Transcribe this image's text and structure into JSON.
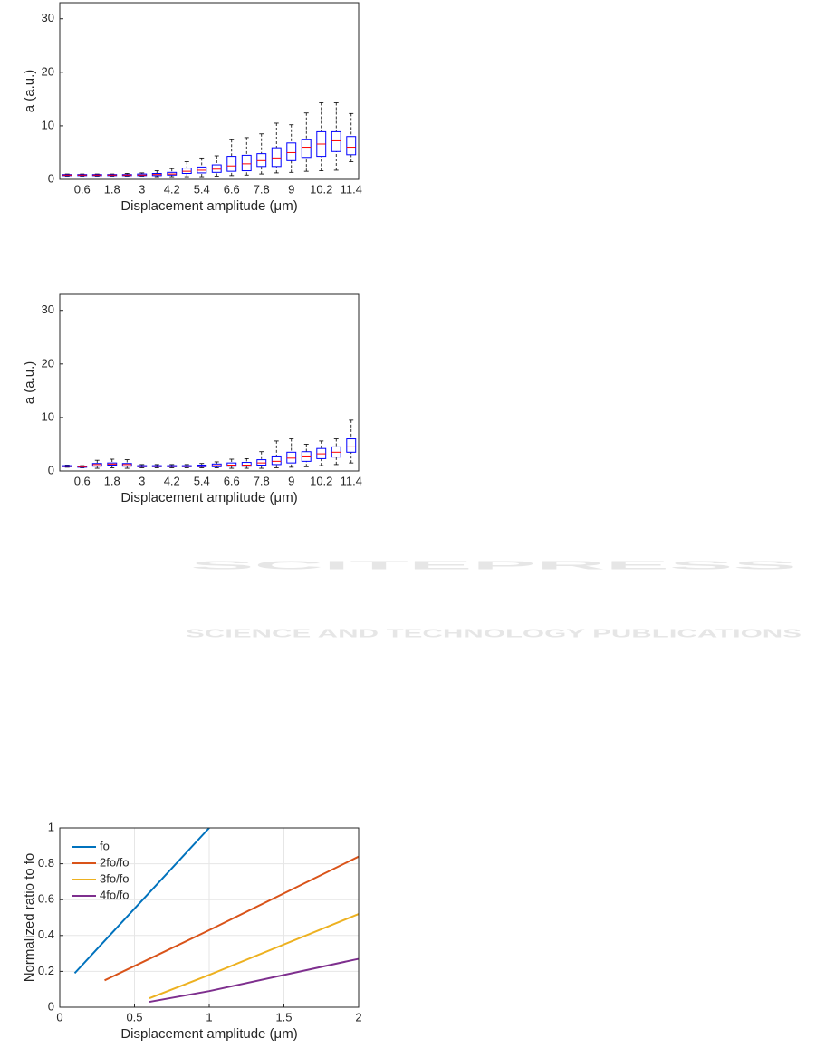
{
  "chart_data": [
    {
      "type": "box",
      "ylabel": "a (a.u.)",
      "xlabel": "Displacement amplitude (μm)",
      "categories": [
        null,
        "0.6",
        null,
        "1.8",
        null,
        "3",
        null,
        "4.2",
        null,
        "5.4",
        null,
        "6.6",
        null,
        "7.8",
        null,
        "9",
        null,
        "10.2",
        null,
        "11.4"
      ],
      "boxes": [
        [
          0.6,
          0.7,
          0.8,
          0.9,
          1.0
        ],
        [
          0.6,
          0.7,
          0.8,
          0.9,
          1.0
        ],
        [
          0.6,
          0.7,
          0.8,
          0.9,
          1.0
        ],
        [
          0.6,
          0.7,
          0.8,
          0.9,
          1.0
        ],
        [
          0.6,
          0.7,
          0.8,
          0.9,
          1.1
        ],
        [
          0.6,
          0.7,
          0.8,
          1.0,
          1.2
        ],
        [
          0.5,
          0.7,
          0.9,
          1.1,
          1.6
        ],
        [
          0.5,
          0.8,
          1.0,
          1.3,
          2.0
        ],
        [
          0.5,
          1.1,
          1.5,
          2.1,
          3.3
        ],
        [
          0.5,
          1.2,
          1.7,
          2.3,
          4.0
        ],
        [
          0.6,
          1.3,
          1.9,
          2.7,
          4.4
        ],
        [
          0.7,
          1.5,
          2.5,
          4.3,
          7.4
        ],
        [
          0.8,
          1.6,
          2.9,
          4.5,
          7.8
        ],
        [
          1.0,
          2.4,
          3.5,
          4.8,
          8.5
        ],
        [
          1.2,
          2.4,
          4.0,
          5.9,
          10.5
        ],
        [
          1.3,
          3.5,
          5.0,
          6.8,
          10.2
        ],
        [
          1.5,
          4.1,
          6.0,
          7.4,
          12.4
        ],
        [
          1.6,
          4.3,
          6.6,
          8.9,
          14.3
        ],
        [
          1.7,
          5.2,
          7.2,
          8.9,
          14.3
        ],
        [
          3.3,
          4.6,
          6.0,
          8.0,
          12.3
        ]
      ],
      "box_color": "#0000ff",
      "median_color": "#ff0000",
      "ylim": [
        0,
        33
      ],
      "yticks": [
        0,
        10,
        20,
        30
      ]
    },
    {
      "type": "box",
      "ylabel": "a (a.u.)",
      "xlabel": "Displacement amplitude (μm)",
      "categories": [
        null,
        "0.6",
        null,
        "1.8",
        null,
        "3",
        null,
        "4.2",
        null,
        "5.4",
        null,
        "6.6",
        null,
        "7.8",
        null,
        "9",
        null,
        "10.2",
        null,
        "11.4"
      ],
      "boxes": [
        [
          0.7,
          0.8,
          0.9,
          1.0,
          1.1
        ],
        [
          0.6,
          0.7,
          0.8,
          0.9,
          1.0
        ],
        [
          0.5,
          0.9,
          1.2,
          1.4,
          2.0
        ],
        [
          0.6,
          1.1,
          1.3,
          1.5,
          2.2
        ],
        [
          0.5,
          0.9,
          1.2,
          1.4,
          2.1
        ],
        [
          0.6,
          0.8,
          0.9,
          1.0,
          1.2
        ],
        [
          0.6,
          0.8,
          0.9,
          1.0,
          1.2
        ],
        [
          0.6,
          0.8,
          0.9,
          1.0,
          1.2
        ],
        [
          0.6,
          0.8,
          0.9,
          1.0,
          1.2
        ],
        [
          0.6,
          0.8,
          0.9,
          1.1,
          1.4
        ],
        [
          0.6,
          0.8,
          1.0,
          1.3,
          1.7
        ],
        [
          0.5,
          0.9,
          1.1,
          1.5,
          2.2
        ],
        [
          0.5,
          0.9,
          1.1,
          1.6,
          2.3
        ],
        [
          0.5,
          1.1,
          1.5,
          2.1,
          3.6
        ],
        [
          0.6,
          1.2,
          1.8,
          2.8,
          5.6
        ],
        [
          0.7,
          1.5,
          2.4,
          3.5,
          6.0
        ],
        [
          0.8,
          1.8,
          2.8,
          3.6,
          5.0
        ],
        [
          1.0,
          2.3,
          3.2,
          4.2,
          5.6
        ],
        [
          1.2,
          2.6,
          3.5,
          4.5,
          6.0
        ],
        [
          1.5,
          3.5,
          4.5,
          6.0,
          9.5
        ]
      ],
      "box_color": "#0000ff",
      "median_color": "#ff0000",
      "ylim": [
        0,
        33
      ],
      "yticks": [
        0,
        10,
        20,
        30
      ]
    },
    {
      "type": "line",
      "ylabel": "Normalized ratio to fo",
      "xlabel": "Displacement amplitude (μm)",
      "x": [
        0.1,
        0.3,
        0.6,
        1,
        2
      ],
      "series": [
        {
          "name": "fo",
          "color": "#0072bd",
          "values": [
            0.19,
            0.37,
            0.64,
            1.0,
            null
          ]
        },
        {
          "name": "2fo/fo",
          "color": "#d95319",
          "values": [
            null,
            0.15,
            0.27,
            0.43,
            0.84
          ]
        },
        {
          "name": "3fo/fo",
          "color": "#edb120",
          "values": [
            null,
            null,
            0.05,
            0.18,
            0.52
          ]
        },
        {
          "name": "4fo/fo",
          "color": "#7e2f8e",
          "values": [
            null,
            null,
            0.03,
            0.09,
            0.27
          ]
        }
      ],
      "xlim": [
        0,
        2
      ],
      "xticks": [
        0,
        0.5,
        1,
        1.5,
        2
      ],
      "ylim": [
        0,
        1
      ],
      "yticks": [
        0,
        0.2,
        0.4,
        0.6,
        0.8,
        1
      ],
      "grid": true,
      "legend": "top-left"
    }
  ],
  "watermark": {
    "title": "SCITEPRESS",
    "subtitle": "SCIENCE AND TECHNOLOGY PUBLICATIONS"
  }
}
